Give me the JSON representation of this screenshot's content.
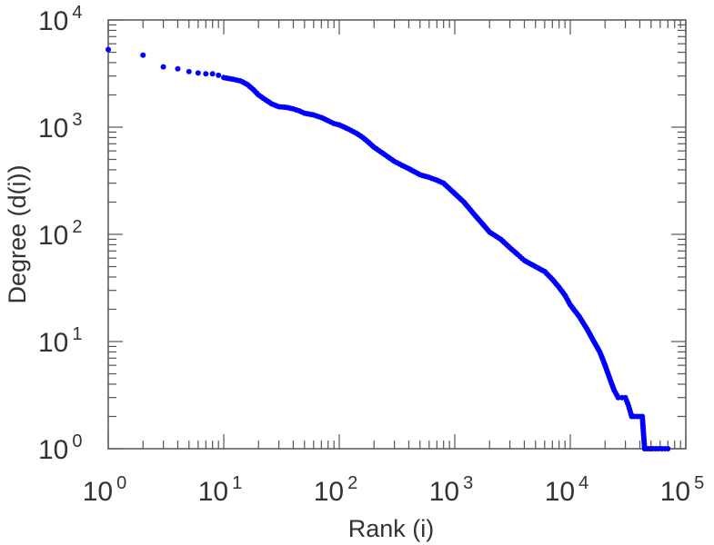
{
  "chart_data": {
    "type": "scatter",
    "title": "",
    "xlabel": "Rank (i)",
    "ylabel": "Degree (d(i))",
    "xscale": "log",
    "yscale": "log",
    "xlim": [
      1,
      100000
    ],
    "ylim": [
      1,
      10000
    ],
    "grid": false,
    "legend": "none",
    "marker_color": "#0000ff",
    "x_ticks": [
      {
        "base": "10",
        "exp": "0",
        "value": 1
      },
      {
        "base": "10",
        "exp": "1",
        "value": 10
      },
      {
        "base": "10",
        "exp": "2",
        "value": 100
      },
      {
        "base": "10",
        "exp": "3",
        "value": 1000
      },
      {
        "base": "10",
        "exp": "4",
        "value": 10000
      },
      {
        "base": "10",
        "exp": "5",
        "value": 100000
      }
    ],
    "y_ticks": [
      {
        "base": "10",
        "exp": "0",
        "value": 1
      },
      {
        "base": "10",
        "exp": "1",
        "value": 10
      },
      {
        "base": "10",
        "exp": "2",
        "value": 100
      },
      {
        "base": "10",
        "exp": "3",
        "value": 1000
      },
      {
        "base": "10",
        "exp": "4",
        "value": 10000
      }
    ],
    "series": [
      {
        "x": [
          1,
          2,
          3,
          4,
          5,
          6,
          7,
          8,
          9,
          10,
          12,
          14,
          16,
          18,
          20,
          23,
          26,
          30,
          35,
          40,
          45,
          50,
          60,
          70,
          80,
          90,
          100,
          120,
          140,
          160,
          180,
          200,
          250,
          300,
          350,
          400,
          500,
          600,
          700,
          800,
          1000,
          1200,
          1500,
          1800,
          2000,
          2500,
          3000,
          3500,
          4000,
          5000,
          6000,
          7000,
          8000,
          9000,
          10000,
          12000,
          14000,
          16000,
          18000,
          20000,
          22000,
          24000,
          26000,
          28000,
          30000,
          32000,
          34000,
          36000,
          38000,
          40000,
          42000,
          44000,
          46000,
          48000,
          50000,
          52000,
          55000,
          58000,
          62000,
          66000,
          70000
        ],
        "y": [
          5300,
          4700,
          3650,
          3500,
          3300,
          3200,
          3150,
          3150,
          3050,
          2900,
          2800,
          2700,
          2500,
          2250,
          2000,
          1800,
          1650,
          1550,
          1530,
          1480,
          1420,
          1350,
          1300,
          1230,
          1150,
          1080,
          1050,
          960,
          880,
          800,
          720,
          650,
          550,
          480,
          440,
          410,
          360,
          340,
          320,
          300,
          240,
          200,
          150,
          120,
          105,
          90,
          75,
          65,
          57,
          50,
          45,
          38,
          32,
          27,
          22,
          17,
          13,
          10,
          8,
          6,
          4.5,
          3.5,
          3,
          3,
          3,
          2.5,
          2,
          2,
          2,
          2,
          2,
          1,
          1,
          1,
          1,
          1,
          1,
          1,
          1,
          1,
          1
        ]
      }
    ]
  }
}
